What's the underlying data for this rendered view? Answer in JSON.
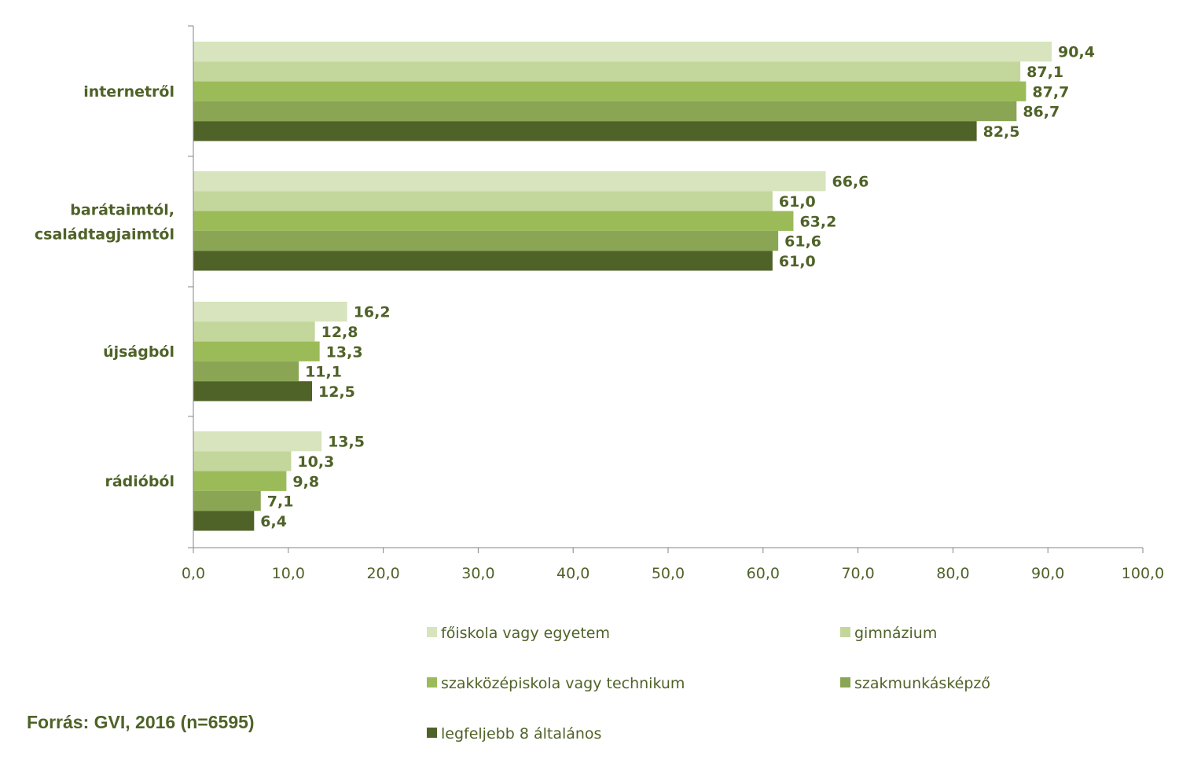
{
  "chart_data": {
    "type": "bar",
    "orientation": "horizontal",
    "categories": [
      "internetről",
      "barátaimtól,\ncsaládtagjaimtól",
      "újságból",
      "rádióból"
    ],
    "series": [
      {
        "name": "főiskola vagy egyetem",
        "color": "#d7e4bd",
        "values": [
          90.4,
          66.6,
          16.2,
          13.5
        ]
      },
      {
        "name": "gimnázium",
        "color": "#c3d69b",
        "values": [
          87.1,
          61.0,
          12.8,
          10.3
        ]
      },
      {
        "name": "szakközépiskola vagy technikum",
        "color": "#9bbb59",
        "values": [
          87.7,
          63.2,
          13.3,
          9.8
        ]
      },
      {
        "name": "szakmunkásképző",
        "color": "#8aa655",
        "values": [
          86.7,
          61.6,
          11.1,
          7.1
        ]
      },
      {
        "name": "legfeljebb 8 általános",
        "color": "#4f6228",
        "values": [
          82.5,
          61.0,
          12.5,
          6.4
        ]
      }
    ],
    "value_labels": [
      [
        "90,4",
        "66,6",
        "16,2",
        "13,5"
      ],
      [
        "87,1",
        "61,0",
        "12,8",
        "10,3"
      ],
      [
        "87,7",
        "63,2",
        "13,3",
        "9,8"
      ],
      [
        "86,7",
        "61,6",
        "11,1",
        "7,1"
      ],
      [
        "82,5",
        "61,0",
        "12,5",
        "6,4"
      ]
    ],
    "xlim": [
      0,
      100
    ],
    "x_ticks": [
      "0,0",
      "10,0",
      "20,0",
      "30,0",
      "40,0",
      "50,0",
      "60,0",
      "70,0",
      "80,0",
      "90,0",
      "100,0"
    ],
    "grid": false,
    "legend_position": "bottom",
    "text_color": "#4f6228"
  },
  "source_note": "Forrás: GVI, 2016 (n=6595)"
}
